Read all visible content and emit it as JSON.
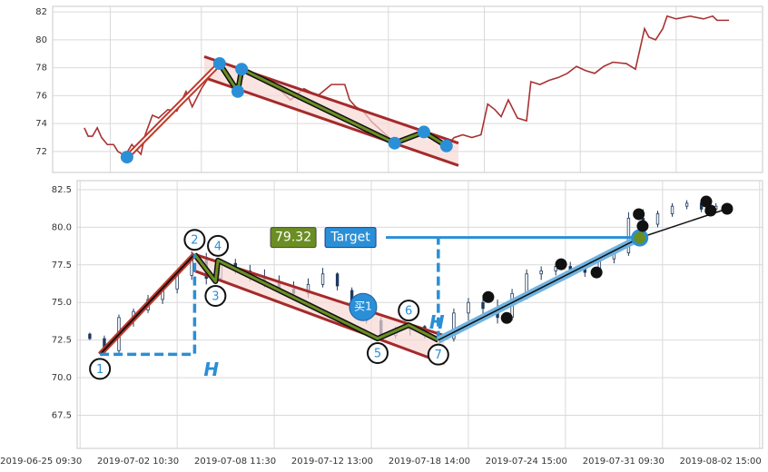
{
  "chart_data": [
    {
      "type": "line",
      "color": "#a83232",
      "x": [
        4.6,
        5.4,
        6.3,
        7.3,
        8.2,
        9.4,
        10.7,
        11.6,
        13.1,
        14.5,
        16.4,
        17.3,
        18.8,
        20.1,
        22.0,
        23.9,
        25.8,
        27.1,
        29.0,
        30.9,
        32.8,
        34.7,
        36.6,
        38.1,
        40.4,
        42.9,
        45.7,
        47.6,
        50.4,
        53.3,
        56.1,
        58.9,
        59.9,
        61.2,
        62.7,
        64.6,
        67.5,
        69.3,
        71.2,
        74.1,
        75.6,
        77.5,
        79.8,
        81.7,
        83.5,
        85.4,
        87.3,
        88.7,
        90.2,
        91.5,
        93.0,
        94.9,
        96.8,
        97.7,
        99.6,
        101.5,
        103.4,
        105.3,
        107.2,
        109.1,
        111.0,
        112.9,
        114.8,
        117.6,
        119.5,
        121.4,
        122.3,
        123.7,
        125.2,
        126.1,
        128.0,
        130.9,
        133.7,
        135.6,
        136.5,
        139.0
      ],
      "values": [
        73.7,
        73.1,
        73.1,
        73.7,
        73.0,
        72.5,
        72.5,
        72.0,
        71.7,
        72.5,
        71.8,
        73.2,
        74.6,
        74.4,
        75.0,
        74.9,
        76.3,
        75.2,
        76.5,
        77.5,
        78.4,
        77.0,
        76.2,
        77.9,
        77.3,
        76.8,
        76.3,
        75.7,
        76.5,
        76.0,
        76.8,
        76.8,
        75.7,
        75.2,
        74.9,
        74.1,
        73.2,
        72.6,
        73.0,
        73.2,
        73.4,
        73.0,
        72.3,
        73.0,
        73.2,
        73.0,
        73.2,
        75.4,
        75.0,
        74.5,
        75.7,
        74.4,
        74.2,
        77.0,
        76.8,
        77.1,
        77.3,
        77.6,
        78.1,
        77.8,
        77.6,
        78.1,
        78.4,
        78.3,
        77.9,
        80.8,
        80.2,
        80.0,
        80.8,
        81.7,
        81.5,
        81.7,
        81.5,
        81.7,
        81.4,
        81.4
      ],
      "xlim": [
        -2,
        146
      ],
      "xticks": [
        10,
        29,
        49,
        68,
        88,
        108,
        128
      ],
      "ylim": [
        70.5,
        82.4
      ],
      "yticks": [
        72,
        74,
        76,
        78,
        80,
        82
      ],
      "grid": true,
      "pattern": {
        "x": [
          13.5,
          32.8,
          36.6,
          37.4,
          69.3,
          75.4,
          80.1
        ],
        "values": [
          71.6,
          78.3,
          76.3,
          77.9,
          72.6,
          73.4,
          72.4
        ],
        "upper": {
          "x": [
            29.6,
            82.6
          ],
          "values": [
            78.8,
            72.6
          ]
        },
        "lower": {
          "x": [
            29.6,
            82.6
          ],
          "values": [
            77.3,
            71.0
          ]
        }
      }
    },
    {
      "type": "candlestick",
      "up_color": "#ffffff",
      "down_color": "#1f3a5f",
      "x": [
        2,
        5,
        8,
        11,
        14,
        17,
        20,
        23,
        26,
        29,
        32,
        35,
        38,
        41,
        44,
        47,
        50,
        53,
        56,
        59,
        62,
        65,
        68,
        71,
        74,
        77,
        80,
        83,
        86,
        89,
        92,
        95,
        98,
        101,
        104,
        107,
        110,
        113,
        116,
        119,
        122,
        125,
        128,
        131,
        134
      ],
      "open": [
        72.9,
        72.6,
        71.8,
        74.0,
        74.5,
        75.2,
        75.9,
        76.8,
        78.0,
        76.6,
        77.6,
        77.1,
        76.7,
        76.3,
        75.9,
        75.6,
        76.2,
        76.9,
        75.8,
        74.9,
        73.8,
        72.8,
        73.2,
        73.4,
        72.9,
        72.6,
        74.3,
        75.0,
        74.6,
        74.0,
        75.6,
        76.9,
        77.1,
        77.4,
        77.2,
        77.0,
        77.9,
        78.3,
        80.6,
        80.2,
        80.9,
        81.4,
        81.6,
        81.2,
        81.4
      ],
      "high": [
        73.0,
        72.8,
        74.2,
        74.6,
        75.5,
        76.0,
        77.2,
        78.4,
        78.3,
        77.9,
        77.9,
        77.5,
        77.2,
        76.8,
        76.4,
        76.6,
        77.3,
        77.0,
        76.0,
        75.1,
        74.0,
        73.4,
        73.6,
        73.5,
        73.1,
        74.6,
        75.3,
        75.5,
        75.2,
        75.9,
        77.2,
        77.4,
        77.6,
        77.7,
        77.5,
        78.2,
        78.6,
        81.0,
        81.2,
        81.1,
        81.6,
        81.8,
        81.8,
        81.6,
        81.5
      ],
      "low": [
        72.5,
        71.6,
        71.6,
        73.4,
        74.3,
        74.9,
        75.6,
        76.5,
        76.2,
        76.4,
        76.9,
        76.4,
        76.0,
        75.6,
        75.2,
        75.3,
        76.0,
        75.8,
        74.6,
        73.6,
        72.5,
        72.6,
        72.8,
        72.6,
        72.2,
        72.4,
        73.8,
        74.2,
        73.6,
        73.8,
        75.2,
        76.5,
        76.8,
        76.9,
        76.7,
        76.8,
        77.6,
        78.1,
        79.9,
        80.0,
        80.7,
        81.2,
        81.0,
        81.0,
        81.0
      ],
      "close": [
        72.6,
        71.8,
        74.0,
        74.4,
        75.2,
        75.9,
        76.8,
        78.0,
        76.6,
        77.6,
        77.1,
        76.7,
        76.3,
        75.9,
        75.6,
        76.2,
        76.9,
        76.1,
        74.9,
        73.8,
        72.8,
        73.2,
        73.4,
        72.9,
        72.6,
        74.3,
        75.0,
        74.6,
        74.0,
        75.6,
        76.9,
        77.1,
        77.4,
        77.2,
        77.0,
        77.9,
        78.3,
        80.6,
        80.2,
        80.9,
        81.4,
        81.6,
        81.2,
        81.4,
        81.2
      ],
      "xlim": [
        -0.6,
        140.6
      ],
      "xticks": [
        {
          "value": 0,
          "label": "2019-06-25 09:30"
        },
        {
          "value": 20,
          "label": "2019-07-02 10:30"
        },
        {
          "value": 40,
          "label": "2019-07-08 11:30"
        },
        {
          "value": 60,
          "label": "2019-07-12 13:00"
        },
        {
          "value": 80,
          "label": "2019-07-18 14:00"
        },
        {
          "value": 100,
          "label": "2019-07-24 15:00"
        },
        {
          "value": 120,
          "label": "2019-07-31 09:30"
        },
        {
          "value": 140,
          "label": "2019-08-02 15:00"
        }
      ],
      "ylim": [
        65.3,
        83.1
      ],
      "yticks": [
        67.5,
        {
          "value": 70,
          "label": "70.0"
        },
        72.5,
        {
          "value": 75,
          "label": "75.0"
        },
        77.5,
        {
          "value": 80,
          "label": "80.0"
        },
        82.5
      ],
      "grid": true,
      "pattern": {
        "x": [
          4.1,
          23.6,
          27.9,
          28.4,
          61.3,
          67.7,
          73.8
        ],
        "values": [
          71.55,
          78.2,
          76.4,
          77.8,
          72.6,
          73.5,
          72.5
        ],
        "labels": [
          "1",
          "2",
          "3",
          "4",
          "5",
          "6",
          "7"
        ],
        "upper": {
          "x": [
            23.6,
            75.0
          ],
          "values": [
            78.2,
            72.8
          ]
        },
        "lower": {
          "x": [
            23.6,
            75.1
          ],
          "values": [
            77.1,
            70.95
          ]
        }
      },
      "measure_labels": [
        "H",
        "H"
      ],
      "buy_signal": {
        "label": "买1",
        "x": 58.3,
        "value": 74.7
      },
      "target": {
        "label": "Target",
        "value": 79.32,
        "x": [
          63.0,
          115.9
        ]
      },
      "trend": {
        "x": [
          73.8,
          115.3
        ],
        "values": [
          72.5,
          79.3
        ]
      },
      "dots": {
        "x": [
          84.1,
          87.9,
          99.1,
          106.4,
          115.1,
          115.9,
          129.0,
          129.9,
          133.3
        ],
        "values": [
          75.36,
          73.97,
          77.54,
          77.0,
          80.87,
          80.08,
          81.71,
          81.11,
          81.23
        ]
      }
    }
  ]
}
